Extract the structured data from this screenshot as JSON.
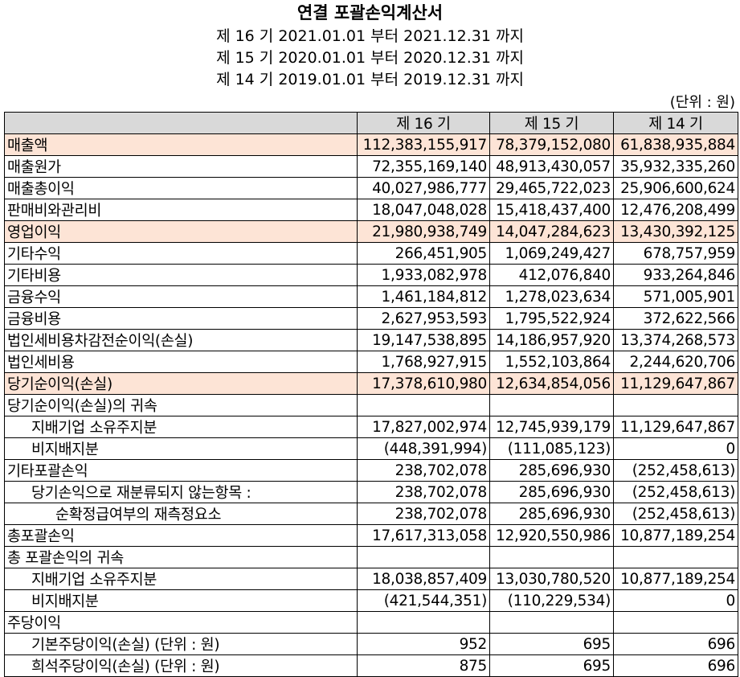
{
  "title": "연결 포괄손익계산서",
  "periods": [
    "제 16 기 2021.01.01 부터 2021.12.31 까지",
    "제 15 기 2020.01.01 부터 2020.12.31 까지",
    "제 14 기 2019.01.01 부터 2019.12.31 까지"
  ],
  "unit": "(단위 : 원)",
  "header": [
    "",
    "제 16 기",
    "제 15 기",
    "제 14 기"
  ],
  "highlight_color": "#fde4d6",
  "rows": [
    {
      "label": "매출액",
      "indent": 0,
      "highlight": true,
      "v": [
        "112,383,155,917",
        "78,379,152,080",
        "61,838,935,884"
      ]
    },
    {
      "label": "매출원가",
      "indent": 0,
      "v": [
        "72,355,169,140",
        "48,913,430,057",
        "35,932,335,260"
      ]
    },
    {
      "label": "매출총이익",
      "indent": 0,
      "v": [
        "40,027,986,777",
        "29,465,722,023",
        "25,906,600,624"
      ]
    },
    {
      "label": "판매비와관리비",
      "indent": 0,
      "v": [
        "18,047,048,028",
        "15,418,437,400",
        "12,476,208,499"
      ]
    },
    {
      "label": "영업이익",
      "indent": 0,
      "highlight": true,
      "v": [
        "21,980,938,749",
        "14,047,284,623",
        "13,430,392,125"
      ]
    },
    {
      "label": "기타수익",
      "indent": 0,
      "v": [
        "266,451,905",
        "1,069,249,427",
        "678,757,959"
      ]
    },
    {
      "label": "기타비용",
      "indent": 0,
      "v": [
        "1,933,082,978",
        "412,076,840",
        "933,264,846"
      ]
    },
    {
      "label": "금융수익",
      "indent": 0,
      "v": [
        "1,461,184,812",
        "1,278,023,634",
        "571,005,901"
      ]
    },
    {
      "label": "금융비용",
      "indent": 0,
      "v": [
        "2,627,953,593",
        "1,795,522,924",
        "372,622,566"
      ]
    },
    {
      "label": "법인세비용차감전순이익(손실)",
      "indent": 0,
      "v": [
        "19,147,538,895",
        "14,186,957,920",
        "13,374,268,573"
      ]
    },
    {
      "label": "법인세비용",
      "indent": 0,
      "v": [
        "1,768,927,915",
        "1,552,103,864",
        "2,244,620,706"
      ]
    },
    {
      "label": "당기순이익(손실)",
      "indent": 0,
      "highlight": true,
      "v": [
        "17,378,610,980",
        "12,634,854,056",
        "11,129,647,867"
      ]
    },
    {
      "label": "당기순이익(손실)의 귀속",
      "indent": 0,
      "v": [
        "",
        "",
        ""
      ]
    },
    {
      "label": "지배기업 소유주지분",
      "indent": 1,
      "v": [
        "17,827,002,974",
        "12,745,939,179",
        "11,129,647,867"
      ]
    },
    {
      "label": "비지배지분",
      "indent": 1,
      "v": [
        "(448,391,994)",
        "(111,085,123)",
        "0"
      ]
    },
    {
      "label": "기타포괄손익",
      "indent": 0,
      "v": [
        "238,702,078",
        "285,696,930",
        "(252,458,613)"
      ]
    },
    {
      "label": "당기손익으로 재분류되지 않는항목 :",
      "indent": 1,
      "v": [
        "238,702,078",
        "285,696,930",
        "(252,458,613)"
      ]
    },
    {
      "label": "순확정급여부의 재측정요소",
      "indent": 2,
      "v": [
        "238,702,078",
        "285,696,930",
        "(252,458,613)"
      ]
    },
    {
      "label": "총포괄손익",
      "indent": 0,
      "v": [
        "17,617,313,058",
        "12,920,550,986",
        "10,877,189,254"
      ]
    },
    {
      "label": "총 포괄손익의 귀속",
      "indent": 0,
      "v": [
        "",
        "",
        ""
      ]
    },
    {
      "label": "지배기업 소유주지분",
      "indent": 1,
      "v": [
        "18,038,857,409",
        "13,030,780,520",
        "10,877,189,254"
      ]
    },
    {
      "label": "비지배지분",
      "indent": 1,
      "v": [
        "(421,544,351)",
        "(110,229,534)",
        "0"
      ]
    },
    {
      "label": "주당이익",
      "indent": 0,
      "v": [
        "",
        "",
        ""
      ]
    },
    {
      "label": "기본주당이익(손실) (단위 : 원)",
      "indent": 1,
      "v": [
        "952",
        "695",
        "696"
      ]
    },
    {
      "label": "희석주당이익(손실) (단위 : 원)",
      "indent": 1,
      "v": [
        "875",
        "695",
        "696"
      ]
    }
  ]
}
